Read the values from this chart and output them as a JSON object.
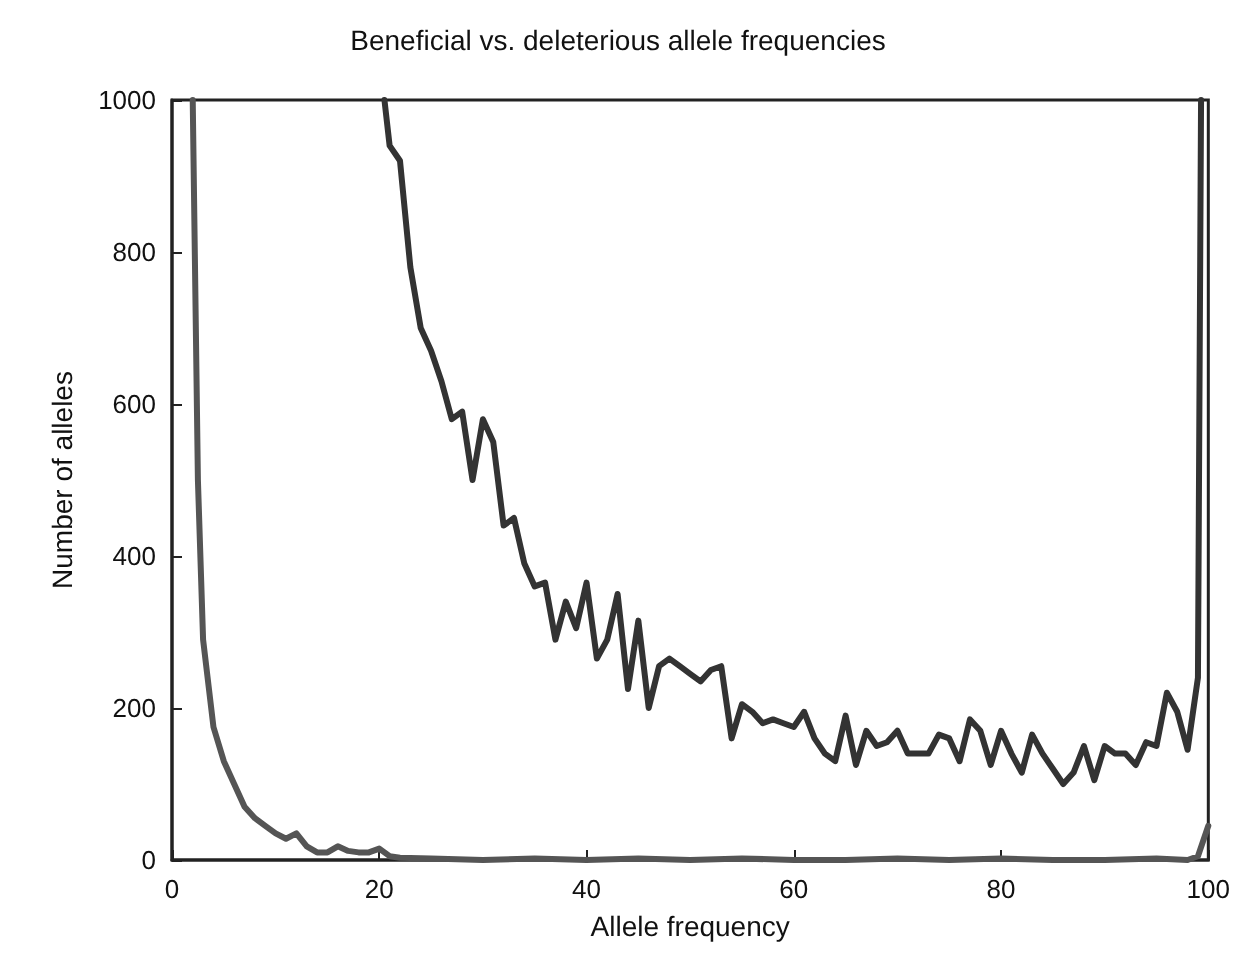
{
  "chart_data": {
    "type": "line",
    "title": "Beneficial vs. deleterious allele frequencies",
    "xlabel": "Allele frequency",
    "ylabel": "Number of alleles",
    "series": [
      {
        "color": "#333333",
        "x": [
          20.5,
          21,
          22,
          23,
          24,
          25,
          26,
          27,
          28,
          29,
          30,
          31,
          32,
          33,
          34,
          35,
          36,
          37,
          38,
          39,
          40,
          41,
          42,
          43,
          44,
          45,
          46,
          47,
          48,
          49,
          50,
          51,
          52,
          53,
          54,
          55,
          56,
          57,
          58,
          59,
          60,
          61,
          62,
          63,
          64,
          65,
          66,
          67,
          68,
          69,
          70,
          71,
          72,
          73,
          74,
          75,
          76,
          77,
          78,
          79,
          80,
          81,
          82,
          83,
          84,
          85,
          86,
          87,
          88,
          89,
          90,
          91,
          92,
          93,
          94,
          95,
          96,
          97,
          98,
          99,
          99.3
        ],
        "values": [
          1000,
          940,
          920,
          780,
          700,
          670,
          630,
          580,
          590,
          500,
          580,
          550,
          440,
          450,
          390,
          360,
          365,
          290,
          340,
          305,
          365,
          265,
          290,
          350,
          225,
          315,
          200,
          255,
          265,
          255,
          245,
          235,
          250,
          255,
          160,
          205,
          195,
          180,
          185,
          180,
          175,
          195,
          160,
          140,
          130,
          190,
          125,
          170,
          150,
          155,
          170,
          140,
          140,
          140,
          165,
          160,
          130,
          185,
          170,
          125,
          170,
          140,
          115,
          165,
          140,
          120,
          100,
          115,
          150,
          105,
          150,
          140,
          140,
          125,
          155,
          150,
          220,
          195,
          145,
          240,
          1000
        ]
      },
      {
        "color": "#555555",
        "x": [
          2,
          2.5,
          3,
          4,
          5,
          6,
          7,
          8,
          9,
          10,
          11,
          12,
          13,
          14,
          15,
          16,
          17,
          18,
          19,
          20,
          21,
          22,
          25,
          30,
          35,
          40,
          45,
          50,
          55,
          60,
          65,
          70,
          75,
          80,
          85,
          90,
          95,
          98,
          99,
          100
        ],
        "values": [
          1000,
          500,
          290,
          175,
          130,
          100,
          70,
          55,
          45,
          35,
          28,
          35,
          18,
          10,
          10,
          18,
          12,
          10,
          10,
          15,
          5,
          3,
          2,
          0,
          2,
          0,
          2,
          0,
          2,
          0,
          0,
          2,
          0,
          2,
          0,
          0,
          2,
          0,
          5,
          45
        ]
      }
    ],
    "xlim": [
      0,
      100
    ],
    "xticks": [
      0,
      20,
      40,
      60,
      80,
      100
    ],
    "ylim": [
      0,
      1000
    ],
    "yticks": [
      0,
      200,
      400,
      600,
      800,
      1000
    ],
    "marker": "none",
    "line_style": "solid"
  }
}
